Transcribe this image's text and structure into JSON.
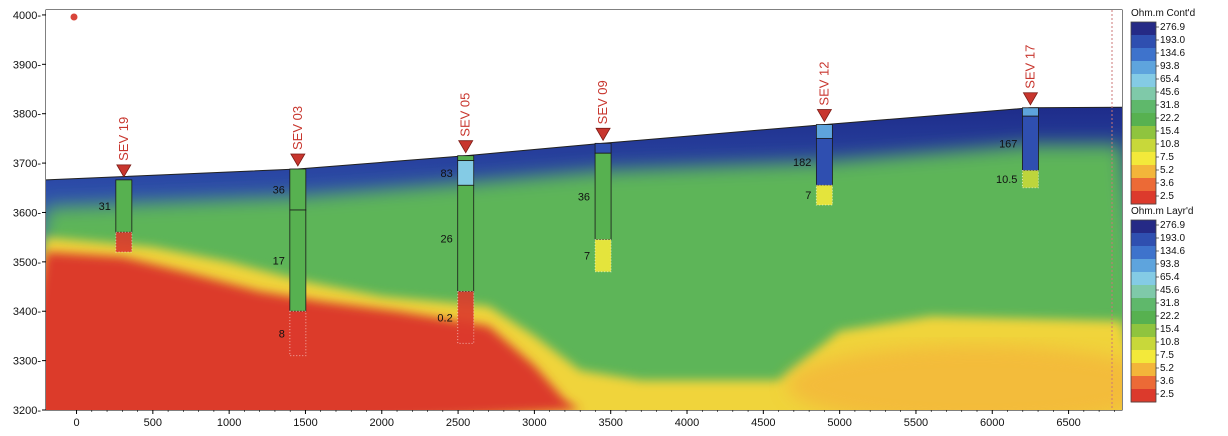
{
  "chart_data": {
    "type": "heatmap",
    "xlim": [
      -200,
      6850
    ],
    "ylim": [
      3200,
      4010
    ],
    "x_ticks": [
      0,
      500,
      1000,
      1500,
      2000,
      2500,
      3000,
      3500,
      4000,
      4500,
      5000,
      5500,
      6000,
      6500
    ],
    "y_ticks": [
      3200,
      3300,
      3400,
      3500,
      3600,
      3700,
      3800,
      3900,
      4000
    ],
    "y_tick_suffix": "-",
    "surface": [
      [
        -200,
        3666
      ],
      [
        1450,
        3688
      ],
      [
        2550,
        3715
      ],
      [
        3450,
        3740
      ],
      [
        4900,
        3778
      ],
      [
        6250,
        3812
      ],
      [
        6850,
        3813
      ]
    ],
    "colorbars": [
      {
        "title": "Ohm.m Cont'd",
        "labels": [
          "276.9",
          "193.0",
          "134.6",
          "93.8",
          "65.4",
          "45.6",
          "31.8",
          "22.2",
          "15.4",
          "10.8",
          "7.5",
          "5.2",
          "3.6",
          "2.5"
        ],
        "colors": [
          "#252a86",
          "#2f4fb0",
          "#3e73cc",
          "#5ea4dd",
          "#84cbe5",
          "#7fc9a9",
          "#5fb86b",
          "#57b150",
          "#8fc43e",
          "#c8d83a",
          "#f3e93a",
          "#f3b53a",
          "#ec6a36",
          "#dc3a2c"
        ]
      },
      {
        "title": "Ohm.m Layr'd",
        "labels": [
          "276.9",
          "193.0",
          "134.6",
          "93.8",
          "65.4",
          "45.6",
          "31.8",
          "22.2",
          "15.4",
          "10.8",
          "7.5",
          "5.2",
          "3.6",
          "2.5"
        ],
        "colors": [
          "#252a86",
          "#2f4fb0",
          "#3e73cc",
          "#5ea4dd",
          "#84cbe5",
          "#7fc9a9",
          "#5fb86b",
          "#57b150",
          "#8fc43e",
          "#c8d83a",
          "#f3e93a",
          "#f3b53a",
          "#ec6a36",
          "#dc3a2c"
        ]
      }
    ],
    "soundings": [
      {
        "name": "SEV 19",
        "x": 310,
        "top": 3666,
        "layers": [
          {
            "bottom": 3560,
            "value": "31",
            "color": "#57b150"
          },
          {
            "bottom": 3520,
            "value": "",
            "color": "#dc3a2c"
          }
        ]
      },
      {
        "name": "SEV 03",
        "x": 1450,
        "top": 3688,
        "layers": [
          {
            "bottom": 3605,
            "value": "36",
            "color": "#57b150"
          },
          {
            "bottom": 3400,
            "value": "17",
            "color": "#57b150"
          },
          {
            "bottom": 3310,
            "value": "8",
            "color": "#dc3a2c"
          }
        ]
      },
      {
        "name": "SEV 05",
        "x": 2550,
        "top": 3715,
        "layers": [
          {
            "bottom": 3705,
            "value": "",
            "color": "#57b150"
          },
          {
            "bottom": 3655,
            "value": "83",
            "color": "#84cbe5"
          },
          {
            "bottom": 3440,
            "value": "26",
            "color": "#57b150"
          },
          {
            "bottom": 3335,
            "value": "0.2",
            "color": "#dc3a2c"
          }
        ]
      },
      {
        "name": "SEV 09",
        "x": 3450,
        "top": 3740,
        "layers": [
          {
            "bottom": 3720,
            "value": "",
            "color": "#2f4fb0"
          },
          {
            "bottom": 3545,
            "value": "36",
            "color": "#57b150"
          },
          {
            "bottom": 3480,
            "value": "7",
            "color": "#f3e93a"
          }
        ]
      },
      {
        "name": "SEV 12",
        "x": 4900,
        "top": 3778,
        "layers": [
          {
            "bottom": 3750,
            "value": "",
            "color": "#5ea4dd"
          },
          {
            "bottom": 3655,
            "value": "182",
            "color": "#2f4fb0"
          },
          {
            "bottom": 3615,
            "value": "7",
            "color": "#f3e93a"
          }
        ]
      },
      {
        "name": "SEV 17",
        "x": 6250,
        "top": 3812,
        "layers": [
          {
            "bottom": 3795,
            "value": "",
            "color": "#5ea4dd"
          },
          {
            "bottom": 3685,
            "value": "167",
            "color": "#2f4fb0"
          },
          {
            "bottom": 3650,
            "value": "10.5",
            "color": "#c8d83a"
          }
        ]
      }
    ],
    "boundary_red_yellow": [
      [
        -200,
        3520
      ],
      [
        300,
        3510
      ],
      [
        700,
        3480
      ],
      [
        1200,
        3440
      ],
      [
        1600,
        3420
      ],
      [
        2100,
        3400
      ],
      [
        2700,
        3370
      ],
      [
        3000,
        3290
      ],
      [
        3200,
        3220
      ],
      [
        3300,
        3200
      ]
    ],
    "boundary_yellow_green": [
      [
        -200,
        3550
      ],
      [
        500,
        3530
      ],
      [
        1000,
        3500
      ],
      [
        1500,
        3460
      ],
      [
        2000,
        3430
      ],
      [
        2700,
        3410
      ],
      [
        3000,
        3350
      ],
      [
        3300,
        3280
      ],
      [
        3700,
        3260
      ],
      [
        4300,
        3260
      ],
      [
        4600,
        3260
      ],
      [
        5000,
        3360
      ],
      [
        5600,
        3390
      ],
      [
        6200,
        3385
      ],
      [
        6850,
        3380
      ]
    ]
  }
}
